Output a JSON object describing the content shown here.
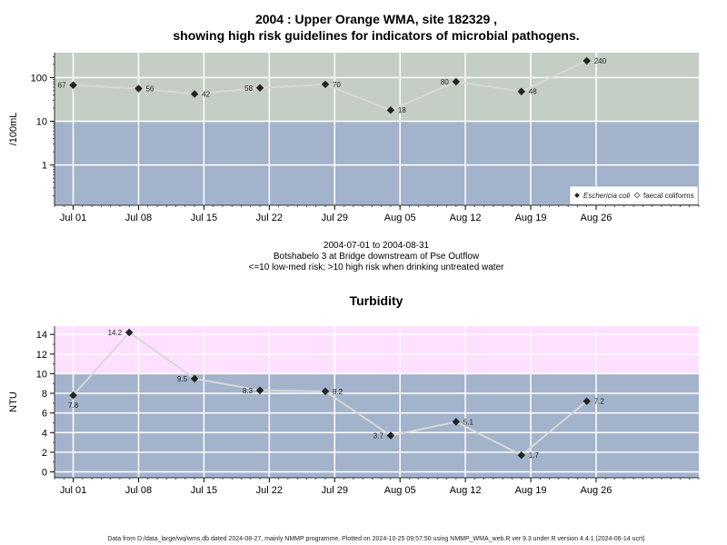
{
  "colors": {
    "high_risk_band": "#c4cec4",
    "low_risk_band": "#a3b3cc",
    "turbidity_high_band": "#ffe0ff",
    "grid": "#ffffff",
    "series_line": "#d8d8d8",
    "marker": "#222222"
  },
  "chart_data": [
    {
      "type": "line",
      "title_line1": "2004 : Upper Orange WMA, site 182329 ,",
      "title_line2": "showing high risk guidelines for indicators of microbial pathogens.",
      "ylabel": "/100mL",
      "yscale": "log",
      "yticks": [
        "100",
        "10",
        "1"
      ],
      "x_ticks": [
        "Jul 01",
        "Jul 08",
        "Jul 15",
        "Jul 22",
        "Jul 29",
        "Aug 05",
        "Aug 12",
        "Aug 19",
        "Aug 26"
      ],
      "x_tick_dates": [
        "2004-07-01",
        "2004-07-08",
        "2004-07-15",
        "2004-07-22",
        "2004-07-29",
        "2004-08-05",
        "2004-08-12",
        "2004-08-19",
        "2004-08-26"
      ],
      "xlim": [
        "2004-06-29",
        "2004-09-06"
      ],
      "ylim": [
        0.12,
        370
      ],
      "threshold": 10,
      "legend_placement": "bottom-right",
      "legend": [
        "Eschericia coli",
        "faecal coliforms"
      ],
      "series": [
        {
          "name": "Eschericia coli",
          "x": [
            "2004-07-01",
            "2004-07-08",
            "2004-07-14",
            "2004-07-21",
            "2004-07-28",
            "2004-08-04",
            "2004-08-11",
            "2004-08-18",
            "2004-08-25"
          ],
          "values": [
            67,
            56,
            42,
            58,
            70,
            18,
            80,
            48,
            240
          ],
          "labels": [
            "67",
            "56",
            "42",
            "58",
            "70",
            "18",
            "80",
            "48",
            "240"
          ],
          "label_side": [
            "left",
            "right",
            "right",
            "left",
            "right",
            "right",
            "left",
            "right",
            "right"
          ]
        }
      ]
    },
    {
      "type": "line",
      "title": "Turbidity",
      "ylabel": "NTU",
      "yticks": [
        0,
        2,
        4,
        6,
        8,
        10,
        12,
        14
      ],
      "x_ticks": [
        "Jul 01",
        "Jul 08",
        "Jul 15",
        "Jul 22",
        "Jul 29",
        "Aug 05",
        "Aug 12",
        "Aug 19",
        "Aug 26"
      ],
      "x_tick_dates": [
        "2004-07-01",
        "2004-07-08",
        "2004-07-15",
        "2004-07-22",
        "2004-07-29",
        "2004-08-05",
        "2004-08-12",
        "2004-08-19",
        "2004-08-26"
      ],
      "xlim": [
        "2004-06-29",
        "2004-09-06"
      ],
      "ylim": [
        -0.6,
        14.85
      ],
      "threshold": 10,
      "series": [
        {
          "x": [
            "2004-07-01",
            "2004-07-07",
            "2004-07-14",
            "2004-07-21",
            "2004-07-28",
            "2004-08-04",
            "2004-08-11",
            "2004-08-18",
            "2004-08-25"
          ],
          "values": [
            7.8,
            14.2,
            9.5,
            8.3,
            8.2,
            3.7,
            5.1,
            1.7,
            7.2
          ],
          "labels": [
            "7.8",
            "14.2",
            "9.5",
            "8.3",
            "8.2",
            "3.7",
            "5.1",
            "1.7",
            "7.2"
          ],
          "label_pos": [
            "below",
            "left",
            "left",
            "left",
            "right",
            "left",
            "right",
            "right",
            "right"
          ]
        }
      ]
    }
  ],
  "subtitle": {
    "date_range": "2004-07-01 to 2004-08-31",
    "site": "Botshabelo 3 at Bridge downstream of Pse Outflow",
    "risk_note": "<=10 low-med risk; >10 high risk when drinking untreated water"
  },
  "footer": "Data from D:/data_large/wq/wms.db dated 2024-08-27, mainly NMMP programme. Plotted on 2024-10-25 09:57:50 using NMMP_WMA_web.R ver 9.3 under R version 4.4.1 (2024-06-14 ucrt)"
}
